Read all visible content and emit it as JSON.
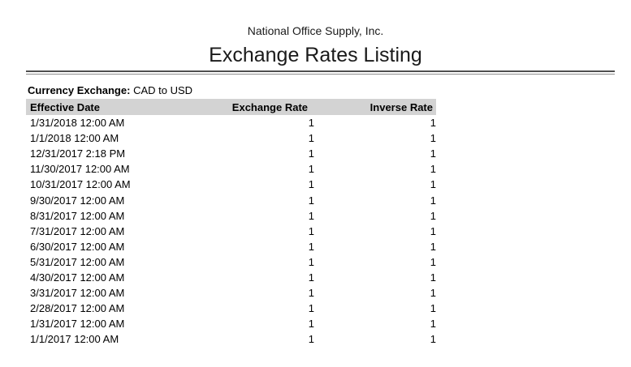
{
  "header": {
    "company": "National Office Supply, Inc.",
    "title": "Exchange Rates Listing"
  },
  "filter": {
    "label": "Currency Exchange:",
    "value": "CAD to USD"
  },
  "table": {
    "columns": [
      "Effective Date",
      "Exchange Rate",
      "Inverse Rate"
    ],
    "rows": [
      [
        "1/31/2018 12:00 AM",
        "1",
        "1"
      ],
      [
        "1/1/2018 12:00 AM",
        "1",
        "1"
      ],
      [
        "12/31/2017 2:18 PM",
        "1",
        "1"
      ],
      [
        "11/30/2017 12:00 AM",
        "1",
        "1"
      ],
      [
        "10/31/2017 12:00 AM",
        "1",
        "1"
      ],
      [
        "9/30/2017 12:00 AM",
        "1",
        "1"
      ],
      [
        "8/31/2017 12:00 AM",
        "1",
        "1"
      ],
      [
        "7/31/2017 12:00 AM",
        "1",
        "1"
      ],
      [
        "6/30/2017 12:00 AM",
        "1",
        "1"
      ],
      [
        "5/31/2017 12:00 AM",
        "1",
        "1"
      ],
      [
        "4/30/2017 12:00 AM",
        "1",
        "1"
      ],
      [
        "3/31/2017 12:00 AM",
        "1",
        "1"
      ],
      [
        "2/28/2017 12:00 AM",
        "1",
        "1"
      ],
      [
        "1/31/2017 12:00 AM",
        "1",
        "1"
      ],
      [
        "1/1/2017 12:00 AM",
        "1",
        "1"
      ]
    ]
  },
  "colors": {
    "header_bar": "#d3d3d3",
    "rule_dark": "#4f4f4f",
    "rule_light": "#8f8f8f",
    "text": "#000000"
  }
}
